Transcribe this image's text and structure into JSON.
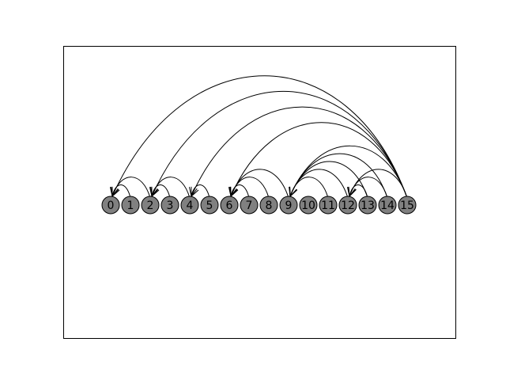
{
  "diagram": {
    "type": "arc-diagram",
    "nodes": [
      "0",
      "1",
      "2",
      "3",
      "4",
      "5",
      "6",
      "7",
      "8",
      "9",
      "10",
      "11",
      "12",
      "13",
      "14",
      "15"
    ],
    "edges": [
      {
        "from": 15,
        "to": 0
      },
      {
        "from": 15,
        "to": 2
      },
      {
        "from": 15,
        "to": 4
      },
      {
        "from": 15,
        "to": 6
      },
      {
        "from": 15,
        "to": 9
      },
      {
        "from": 15,
        "to": 12
      },
      {
        "from": 14,
        "to": 9
      },
      {
        "from": 14,
        "to": 12
      },
      {
        "from": 13,
        "to": 9
      },
      {
        "from": 13,
        "to": 12
      },
      {
        "from": 12,
        "to": 9
      },
      {
        "from": 11,
        "to": 9
      },
      {
        "from": 9,
        "to": 6
      },
      {
        "from": 8,
        "to": 6
      },
      {
        "from": 7,
        "to": 6
      },
      {
        "from": 5,
        "to": 4
      },
      {
        "from": 4,
        "to": 2
      },
      {
        "from": 3,
        "to": 2
      },
      {
        "from": 2,
        "to": 0
      },
      {
        "from": 1,
        "to": 0
      }
    ],
    "node_color": "#808080",
    "edge_color": "#000000"
  }
}
